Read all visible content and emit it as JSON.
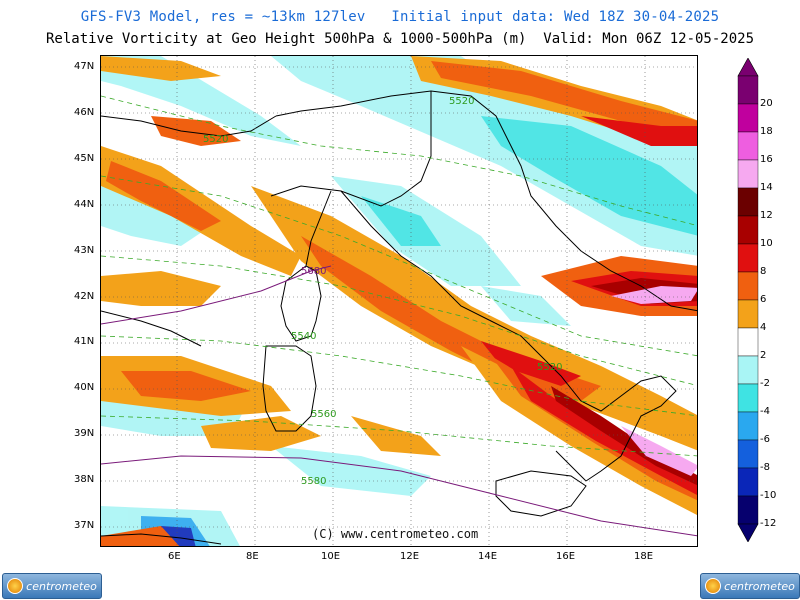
{
  "header": {
    "line1": "GFS-FV3 Model, res = ~13km 127lev   Initial input data: Wed 18Z 30-04-2025",
    "line2": "Relative Vorticity at Geo Height 500hPa & 1000-500hPa (m)  Valid: Mon 06Z 12-05-2025"
  },
  "map": {
    "lat_labels": [
      "47N",
      "46N",
      "45N",
      "44N",
      "43N",
      "42N",
      "41N",
      "40N",
      "39N",
      "38N",
      "37N"
    ],
    "lon_labels": [
      "6E",
      "8E",
      "10E",
      "12E",
      "14E",
      "16E",
      "18E"
    ],
    "contour_labels": [
      "5520",
      "5520",
      "5680",
      "5540",
      "5520",
      "5560",
      "5580"
    ],
    "copyright": "(C) www.centrometeo.com"
  },
  "colorbar": {
    "labels": [
      "20",
      "18",
      "16",
      "14",
      "12",
      "10",
      "8",
      "6",
      "4",
      "2",
      "-2",
      "-4",
      "-6",
      "-8",
      "-10",
      "-12"
    ],
    "colors": [
      "#7a0070",
      "#c0009e",
      "#ee5ee0",
      "#f6a9f0",
      "#6b0000",
      "#a80000",
      "#e01010",
      "#f06010",
      "#f3a21a",
      "#ffffff",
      "#a9f5f5",
      "#3fe3e3",
      "#2aa8ef",
      "#1460dd",
      "#0a26b8",
      "#06006e"
    ]
  },
  "logos": {
    "text": "centrometeo"
  }
}
